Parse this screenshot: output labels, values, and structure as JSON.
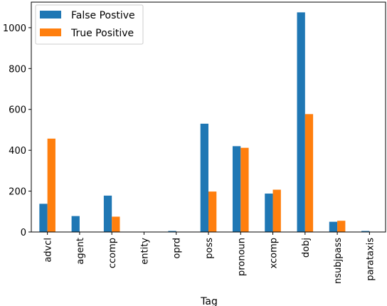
{
  "chart_data": {
    "type": "bar",
    "title": "",
    "xlabel": "Tag",
    "ylabel": "",
    "categories": [
      "advcl",
      "agent",
      "ccomp",
      "entity",
      "oprd",
      "poss",
      "pronoun",
      "xcomp",
      "dobj",
      "nsubjpass",
      "parataxis"
    ],
    "series": [
      {
        "name": "False Postive",
        "color": "#1f77b4",
        "values": [
          138,
          78,
          178,
          1,
          5,
          530,
          420,
          188,
          1075,
          50,
          5
        ]
      },
      {
        "name": "True Positive",
        "color": "#ff7f0e",
        "values": [
          457,
          0,
          75,
          0,
          0,
          198,
          412,
          207,
          577,
          55,
          0
        ]
      }
    ],
    "yticks": [
      0,
      200,
      400,
      600,
      800,
      1000
    ],
    "ylim": [
      0,
      1125
    ],
    "grid": false,
    "legend_position": "top-left"
  }
}
